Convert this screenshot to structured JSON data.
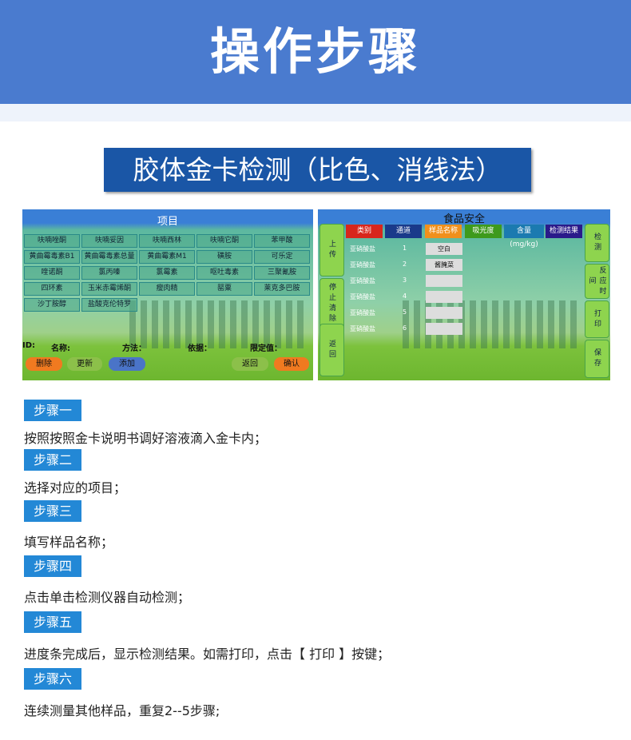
{
  "header": {
    "title": "操作步骤",
    "subtitle": "胶体金卡检测（比色、消线法）"
  },
  "screen1": {
    "title": "项目",
    "items": [
      "呋喃唑酮",
      "呋喃妥因",
      "呋喃西林",
      "呋喃它酮",
      "苯甲酸",
      "黄曲霉毒素B1",
      "黄曲霉毒素总量",
      "黄曲霉素M1",
      "磺胺",
      "可乐定",
      "喹诺酮",
      "氯丙嗪",
      "氯霉素",
      "呕吐毒素",
      "三聚氰胺",
      "四环素",
      "玉米赤霉烯酮",
      "瘦肉精",
      "罂粟",
      "莱克多巴胺",
      "沙丁胺醇",
      "盐酸克伦特罗"
    ],
    "fields": {
      "id": "ID:",
      "name": "名称:",
      "method": "方法：",
      "basis": "依据：",
      "limit": "限定值："
    },
    "buttons": {
      "delete": "删除",
      "update": "更新",
      "add": "添加",
      "back": "返回",
      "confirm": "确认"
    }
  },
  "screen2": {
    "title": "食品安全",
    "headers": [
      "类别",
      "通道",
      "样品名称",
      "吸光度",
      "含量(mg/kg)",
      "检测结果"
    ],
    "header_colors": [
      "#d8261c",
      "#1a3a8a",
      "#f0901c",
      "#3e9a1c",
      "#1b7ab0",
      "#2a1a8a"
    ],
    "rows": [
      {
        "category": "亚硝酸盐",
        "channel": "1",
        "sample": "空白"
      },
      {
        "category": "亚硝酸盐",
        "channel": "2",
        "sample": "酱腌菜"
      },
      {
        "category": "亚硝酸盐",
        "channel": "3",
        "sample": ""
      },
      {
        "category": "亚硝酸盐",
        "channel": "4",
        "sample": ""
      },
      {
        "category": "亚硝酸盐",
        "channel": "5",
        "sample": ""
      },
      {
        "category": "亚硝酸盐",
        "channel": "6",
        "sample": ""
      }
    ],
    "left_buttons": [
      "上传",
      "停止清除",
      "返回"
    ],
    "right_buttons": [
      "检测",
      "反应时间",
      "打印",
      "保存"
    ]
  },
  "steps": [
    {
      "label": "步骤一",
      "text": "按照按照金卡说明书调好溶液滴入金卡内；"
    },
    {
      "label": "步骤二",
      "text": "选择对应的项目；"
    },
    {
      "label": "步骤三",
      "text": "填写样品名称；"
    },
    {
      "label": "步骤四",
      "text": "点击单击检测仪器自动检测；"
    },
    {
      "label": "步骤五",
      "text": "进度条完成后，显示检测结果。如需打印，点击【 打印 】按键；"
    },
    {
      "label": "步骤六",
      "text": "连续测量其他样品，重复2--5步骤;"
    }
  ]
}
